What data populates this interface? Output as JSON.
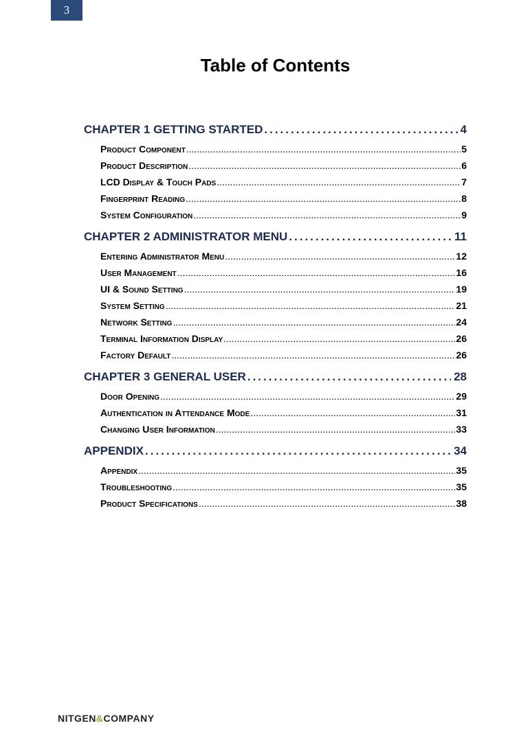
{
  "page_number": "3",
  "title": "Table of Contents",
  "colors": {
    "tab_bg": "#2a4a7a",
    "chapter_text": "#1a2a55",
    "body_text": "#000000",
    "brand_amp": "#86b62c"
  },
  "typography": {
    "title_fontsize_pt": 20,
    "chapter_fontsize_pt": 13,
    "sub_fontsize_pt": 11,
    "footer_fontsize_pt": 11
  },
  "toc": [
    {
      "label": "CHAPTER 1 GETTING STARTED",
      "page": "4",
      "items": [
        {
          "label": "Product Component",
          "page": "5"
        },
        {
          "label": "Product Description",
          "page": "6"
        },
        {
          "label": "LCD Display & Touch Pads",
          "page": "7"
        },
        {
          "label": "Fingerprint Reading",
          "page": "8"
        },
        {
          "label": "System Configuration",
          "page": "9"
        }
      ]
    },
    {
      "label": "CHAPTER 2 ADMINISTRATOR MENU",
      "page": "11",
      "items": [
        {
          "label": "Entering Administrator Menu",
          "page": "12"
        },
        {
          "label": "User Management",
          "page": "16"
        },
        {
          "label": "UI & Sound Setting",
          "page": "19"
        },
        {
          "label": "System Setting",
          "page": "21"
        },
        {
          "label": "Network Setting",
          "page": "24"
        },
        {
          "label": "Terminal Information Display",
          "page": "26"
        },
        {
          "label": "Factory Default",
          "page": "26"
        }
      ]
    },
    {
      "label": "CHAPTER 3 GENERAL USER",
      "page": "28",
      "items": [
        {
          "label": "Door Opening",
          "page": "29"
        },
        {
          "label": "Authentication in Attendance Mode",
          "page": "31"
        },
        {
          "label": "Changing User Information",
          "page": "33"
        }
      ]
    },
    {
      "label": "APPENDIX",
      "page": "34",
      "items": [
        {
          "label": "Appendix",
          "page": "35"
        },
        {
          "label": "Troubleshooting",
          "page": "35"
        },
        {
          "label": "Product Specifications",
          "page": "38"
        }
      ]
    }
  ],
  "footer": {
    "brand_a": "NITGEN",
    "brand_amp": "&",
    "brand_b": "COMPANY"
  }
}
